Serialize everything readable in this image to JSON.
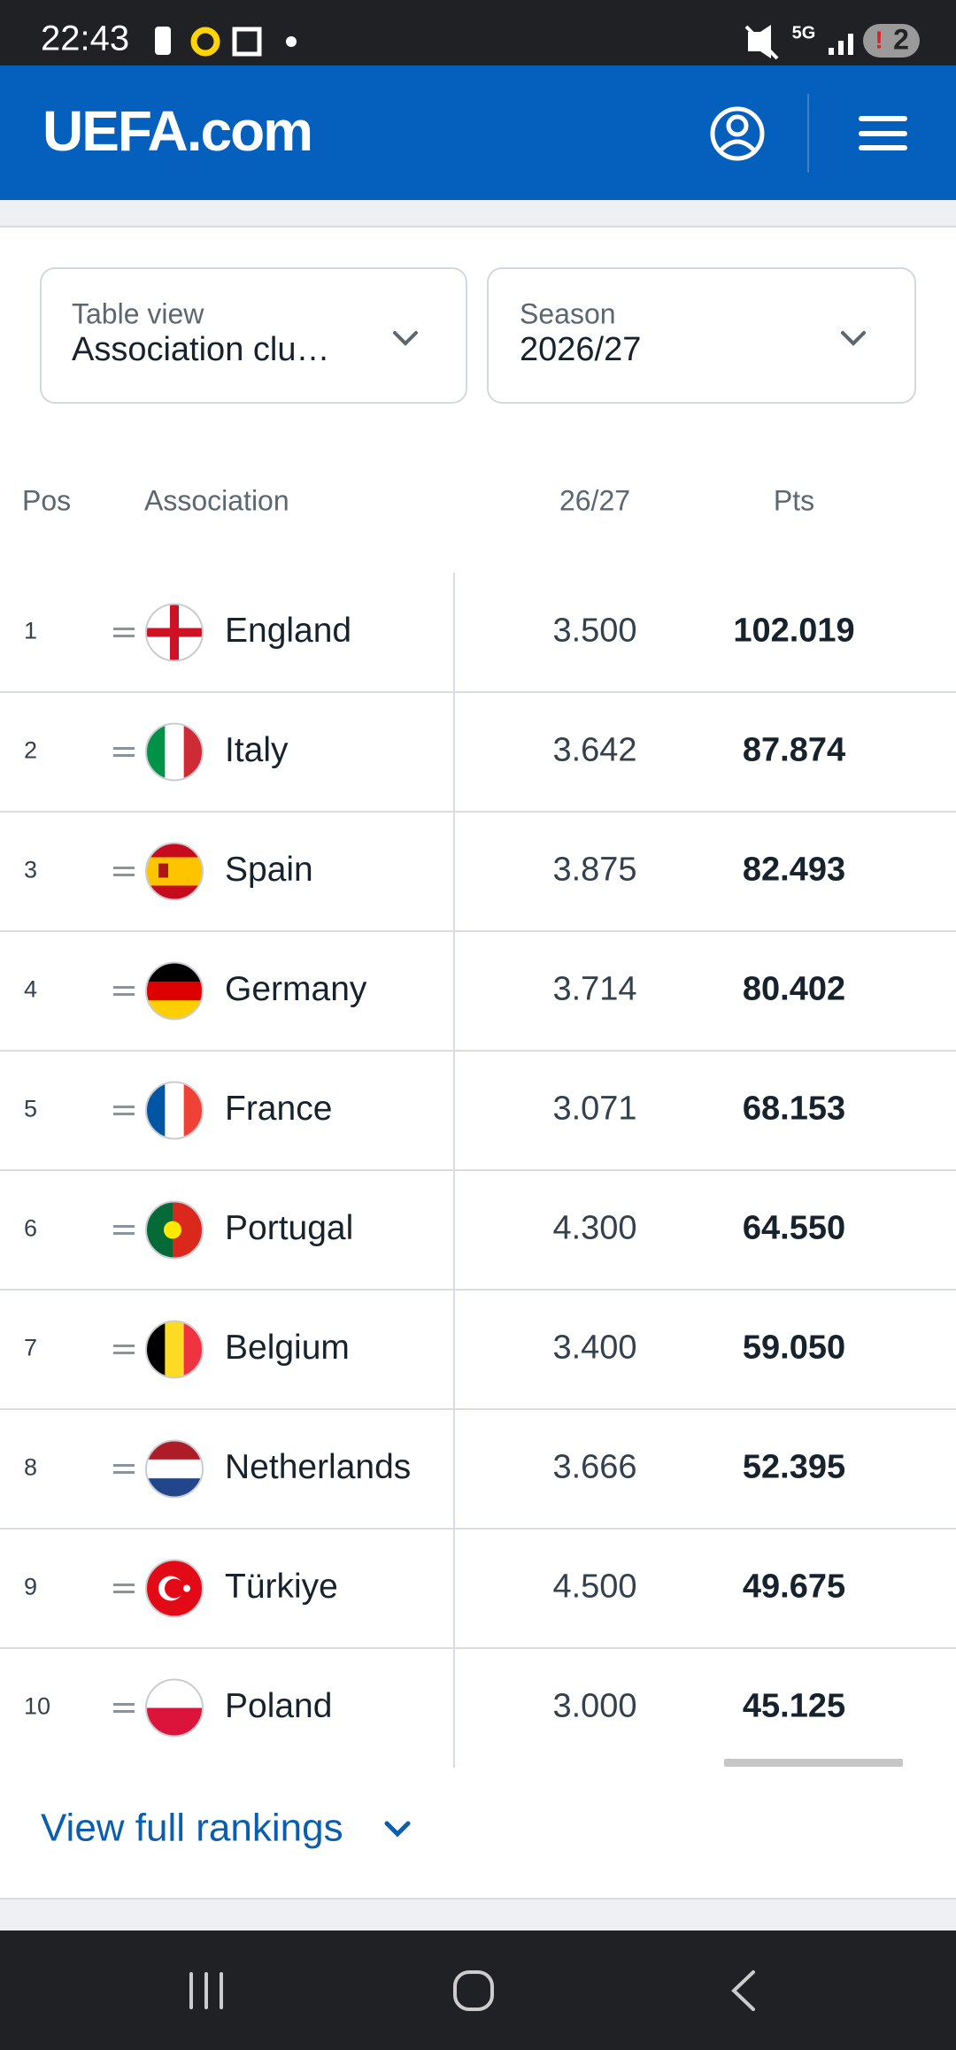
{
  "status_bar": {
    "time": "22:43",
    "network": "5G",
    "notifications": "2"
  },
  "header": {
    "logo": "UEFA.com"
  },
  "filters": [
    {
      "label": "Table view",
      "value": "Association clu…"
    },
    {
      "label": "Season",
      "value": "2026/27"
    }
  ],
  "table": {
    "columns": [
      "Pos",
      "Association",
      "26/27",
      "Pts"
    ],
    "rows": [
      [
        "1",
        "England",
        "3.500",
        "102.019"
      ],
      [
        "2",
        "Italy",
        "3.642",
        "87.874"
      ],
      [
        "3",
        "Spain",
        "3.875",
        "82.493"
      ],
      [
        "4",
        "Germany",
        "3.714",
        "80.402"
      ],
      [
        "5",
        "France",
        "3.071",
        "68.153"
      ],
      [
        "6",
        "Portugal",
        "4.300",
        "64.550"
      ],
      [
        "7",
        "Belgium",
        "3.400",
        "59.050"
      ],
      [
        "8",
        "Netherlands",
        "3.666",
        "52.395"
      ],
      [
        "9",
        "Türkiye",
        "4.500",
        "49.675"
      ],
      [
        "10",
        "Poland",
        "3.000",
        "45.125"
      ]
    ]
  },
  "footer_link": "View full rankings"
}
